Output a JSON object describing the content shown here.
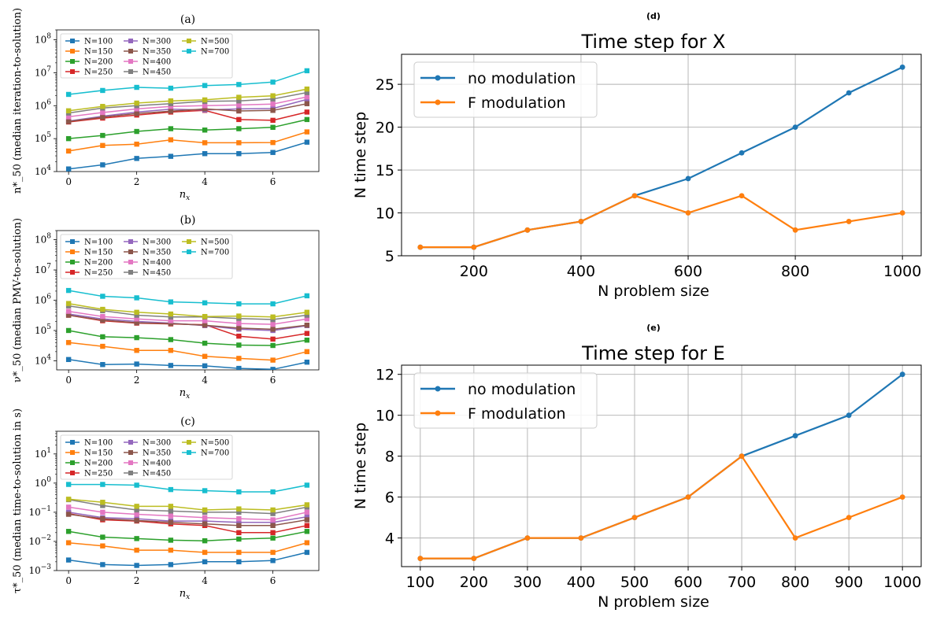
{
  "colors": {
    "N=100": "#1f77b4",
    "N=150": "#ff7f0e",
    "N=200": "#2ca02c",
    "N=250": "#d62728",
    "N=300": "#9467bd",
    "N=350": "#8c564b",
    "N=400": "#e377c2",
    "N=450": "#7f7f7f",
    "N=500": "#bcbd22",
    "N=700": "#17becf"
  },
  "chart_data": [
    {
      "panel": "(a)",
      "type": "line",
      "title": "(a)",
      "xlabel": "n_x",
      "ylabel": "n*_50 (median iteration-to-solution)",
      "yscale": "log",
      "ylim": [
        10000,
        200000000
      ],
      "xlim": [
        -0.35,
        7.35
      ],
      "xticks": [
        0,
        2,
        4,
        6
      ],
      "yticks": [
        "10^4",
        "10^5",
        "10^6",
        "10^7",
        "10^8"
      ],
      "x": [
        0,
        1,
        2,
        3,
        4,
        5,
        6,
        7
      ],
      "legend": [
        "N=100",
        "N=150",
        "N=200",
        "N=250",
        "N=300",
        "N=350",
        "N=400",
        "N=450",
        "N=500",
        "N=700"
      ],
      "series": [
        {
          "name": "N=100",
          "values": [
            12000,
            16000,
            25000,
            29000,
            35000,
            35000,
            38000,
            78000
          ]
        },
        {
          "name": "N=150",
          "values": [
            42000,
            62000,
            68000,
            92000,
            75000,
            75000,
            76000,
            160000
          ]
        },
        {
          "name": "N=200",
          "values": [
            100000,
            125000,
            165000,
            200000,
            182000,
            200000,
            220000,
            380000
          ]
        },
        {
          "name": "N=250",
          "values": [
            320000,
            420000,
            520000,
            640000,
            720000,
            380000,
            360000,
            640000
          ]
        },
        {
          "name": "N=300",
          "values": [
            340000,
            480000,
            640000,
            780000,
            740000,
            800000,
            820000,
            1550000
          ]
        },
        {
          "name": "N=350",
          "values": [
            330000,
            450000,
            580000,
            680000,
            800000,
            690000,
            720000,
            1150000
          ]
        },
        {
          "name": "N=400",
          "values": [
            460000,
            620000,
            800000,
            950000,
            1000000,
            1050000,
            1120000,
            1850000
          ]
        },
        {
          "name": "N=450",
          "values": [
            600000,
            850000,
            1000000,
            1150000,
            1350000,
            1400000,
            1600000,
            2500000
          ]
        },
        {
          "name": "N=500",
          "values": [
            700000,
            950000,
            1200000,
            1400000,
            1500000,
            1800000,
            2000000,
            3200000
          ]
        },
        {
          "name": "N=700",
          "values": [
            2200000,
            2900000,
            3600000,
            3400000,
            4100000,
            4400000,
            5200000,
            11500000
          ]
        }
      ]
    },
    {
      "panel": "(b)",
      "type": "line",
      "title": "(b)",
      "xlabel": "n_x",
      "ylabel": "ν*_50 (median PMV-to-solution)",
      "yscale": "log",
      "ylim": [
        5000,
        200000000
      ],
      "xlim": [
        -0.35,
        7.35
      ],
      "xticks": [
        0,
        2,
        4,
        6
      ],
      "yticks": [
        "10^4",
        "10^5",
        "10^6",
        "10^7",
        "10^8"
      ],
      "x": [
        0,
        1,
        2,
        3,
        4,
        5,
        6,
        7
      ],
      "legend": [
        "N=100",
        "N=150",
        "N=200",
        "N=250",
        "N=300",
        "N=350",
        "N=400",
        "N=450",
        "N=500",
        "N=700"
      ],
      "series": [
        {
          "name": "N=100",
          "values": [
            11000,
            7500,
            7800,
            7000,
            6800,
            5600,
            5200,
            9000
          ]
        },
        {
          "name": "N=150",
          "values": [
            40000,
            30000,
            22000,
            22000,
            14000,
            12000,
            10500,
            20000
          ]
        },
        {
          "name": "N=200",
          "values": [
            100000,
            62000,
            58000,
            50000,
            38000,
            33000,
            32000,
            48000
          ]
        },
        {
          "name": "N=250",
          "values": [
            320000,
            210000,
            175000,
            165000,
            155000,
            65000,
            52000,
            80000
          ]
        },
        {
          "name": "N=300",
          "values": [
            350000,
            240000,
            200000,
            175000,
            145000,
            110000,
            100000,
            145000
          ]
        },
        {
          "name": "N=350",
          "values": [
            320000,
            220000,
            180000,
            170000,
            150000,
            120000,
            110000,
            150000
          ]
        },
        {
          "name": "N=400",
          "values": [
            430000,
            290000,
            240000,
            210000,
            210000,
            170000,
            160000,
            240000
          ]
        },
        {
          "name": "N=450",
          "values": [
            650000,
            450000,
            320000,
            280000,
            280000,
            250000,
            230000,
            320000
          ]
        },
        {
          "name": "N=500",
          "values": [
            780000,
            500000,
            400000,
            350000,
            290000,
            300000,
            280000,
            400000
          ]
        },
        {
          "name": "N=700",
          "values": [
            2100000,
            1350000,
            1200000,
            880000,
            820000,
            760000,
            760000,
            1400000
          ]
        }
      ]
    },
    {
      "panel": "(c)",
      "type": "line",
      "title": "(c)",
      "xlabel": "n_x",
      "ylabel": "τ*_50 (median time-to-solution in s)",
      "yscale": "log",
      "ylim": [
        0.001,
        60
      ],
      "xlim": [
        -0.35,
        7.35
      ],
      "xticks": [
        0,
        2,
        4,
        6
      ],
      "yticks": [
        "10^-3",
        "10^-2",
        "10^-1",
        "10^0",
        "10^1"
      ],
      "x": [
        0,
        1,
        2,
        3,
        4,
        5,
        6,
        7
      ],
      "legend": [
        "N=100",
        "N=150",
        "N=200",
        "N=250",
        "N=300",
        "N=350",
        "N=400",
        "N=450",
        "N=500",
        "N=700"
      ],
      "series": [
        {
          "name": "N=100",
          "values": [
            0.0023,
            0.0016,
            0.0015,
            0.0016,
            0.002,
            0.002,
            0.0022,
            0.0042
          ]
        },
        {
          "name": "N=150",
          "values": [
            0.009,
            0.007,
            0.005,
            0.005,
            0.0042,
            0.0042,
            0.0042,
            0.009
          ]
        },
        {
          "name": "N=200",
          "values": [
            0.022,
            0.014,
            0.0125,
            0.011,
            0.0105,
            0.012,
            0.013,
            0.022
          ]
        },
        {
          "name": "N=250",
          "values": [
            0.09,
            0.055,
            0.05,
            0.04,
            0.035,
            0.02,
            0.02,
            0.035
          ]
        },
        {
          "name": "N=300",
          "values": [
            0.1,
            0.065,
            0.06,
            0.05,
            0.05,
            0.045,
            0.045,
            0.07
          ]
        },
        {
          "name": "N=350",
          "values": [
            0.085,
            0.06,
            0.052,
            0.045,
            0.04,
            0.035,
            0.035,
            0.055
          ]
        },
        {
          "name": "N=400",
          "values": [
            0.15,
            0.1,
            0.085,
            0.075,
            0.065,
            0.06,
            0.055,
            0.1
          ]
        },
        {
          "name": "N=450",
          "values": [
            0.27,
            0.17,
            0.12,
            0.11,
            0.1,
            0.1,
            0.09,
            0.15
          ]
        },
        {
          "name": "N=500",
          "values": [
            0.28,
            0.22,
            0.16,
            0.16,
            0.12,
            0.13,
            0.12,
            0.18
          ]
        },
        {
          "name": "N=700",
          "values": [
            0.9,
            0.9,
            0.85,
            0.6,
            0.55,
            0.5,
            0.5,
            0.85
          ]
        }
      ]
    },
    {
      "panel": "(d)",
      "type": "line",
      "title": "Time step for X",
      "xlabel": "N problem size",
      "ylabel": "N time step",
      "xlim": [
        65,
        1035
      ],
      "ylim": [
        5,
        28.5
      ],
      "xticks": [
        200,
        400,
        600,
        800,
        1000
      ],
      "yticks": [
        5,
        10,
        15,
        20,
        25
      ],
      "grid": true,
      "legend_position": "top-left",
      "x": [
        100,
        200,
        300,
        400,
        500,
        600,
        700,
        800,
        900,
        1000
      ],
      "series": [
        {
          "name": "no modulation",
          "values": [
            6,
            6,
            8,
            9,
            12,
            14,
            17,
            20,
            24,
            27
          ]
        },
        {
          "name": "F modulation",
          "values": [
            6,
            6,
            8,
            9,
            12,
            10,
            12,
            8,
            9,
            10
          ]
        }
      ]
    },
    {
      "panel": "(e)",
      "type": "line",
      "title": "Time step for E",
      "xlabel": "N problem size",
      "ylabel": "N time step",
      "xlim": [
        65,
        1035
      ],
      "ylim": [
        2.6,
        12.45
      ],
      "xticks": [
        100,
        200,
        300,
        400,
        500,
        600,
        700,
        800,
        900,
        1000
      ],
      "yticks": [
        4,
        6,
        8,
        10,
        12
      ],
      "grid": true,
      "legend_position": "top-left",
      "x": [
        100,
        200,
        300,
        400,
        500,
        600,
        700,
        800,
        900,
        1000
      ],
      "series": [
        {
          "name": "no modulation",
          "values": [
            3,
            3,
            4,
            4,
            5,
            6,
            8,
            9,
            10,
            12
          ]
        },
        {
          "name": "F modulation",
          "values": [
            3,
            3,
            4,
            4,
            5,
            6,
            8,
            4,
            5,
            6
          ]
        }
      ]
    }
  ],
  "panel_d_label": "(d)",
  "panel_e_label": "(e)",
  "right_colors": {
    "no modulation": "#1f77b4",
    "F modulation": "#ff7f0e"
  }
}
